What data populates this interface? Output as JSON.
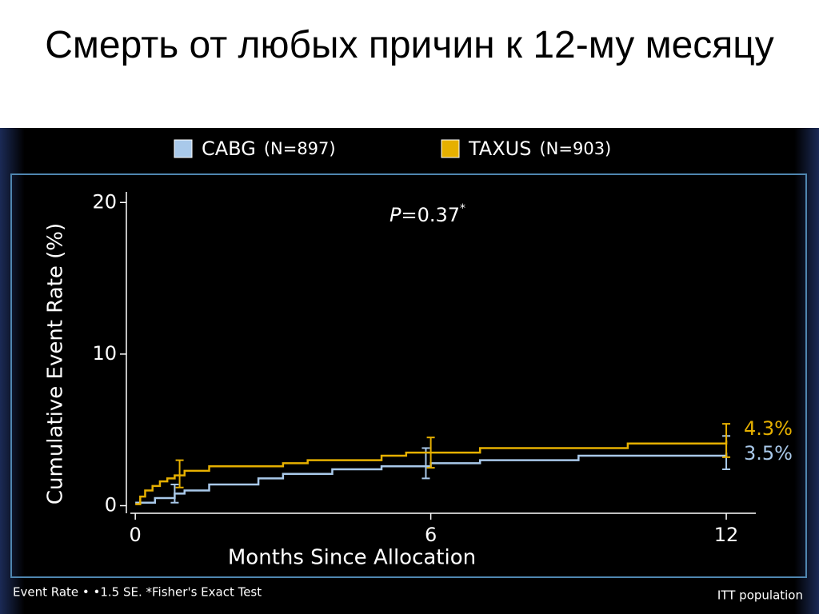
{
  "title": "Смерть от любых причин к 12-му месяцу",
  "chart_data": {
    "type": "step",
    "y_label": "Cumulative Event Rate (%)",
    "x_label": "Months Since Allocation",
    "annotation": {
      "p": "P",
      "text": "=0.37",
      "mark": "*"
    },
    "footnote": "Event Rate • •1.5 SE. *Fisher's Exact Test",
    "population": "ITT population",
    "xlim": [
      -0.1,
      12.6
    ],
    "xticks": [
      0,
      6,
      12
    ],
    "ylim": [
      -0.5,
      20.7
    ],
    "yticks": [
      0,
      10,
      20
    ],
    "series": [
      {
        "name": "CABG",
        "n_label": "(N=897)",
        "color": "#a9c9ea",
        "end_label": "3.5%",
        "x": [
          0,
          0.4,
          0.8,
          1.0,
          1.5,
          2.5,
          3.0,
          4.0,
          5.0,
          6.0,
          7.0,
          9.0,
          12.0
        ],
        "values": [
          0.2,
          0.5,
          0.8,
          1.0,
          1.4,
          1.8,
          2.1,
          2.4,
          2.6,
          2.8,
          3.0,
          3.3,
          3.5
        ],
        "error_bars": {
          "x": [
            0.8,
            5.9,
            12
          ],
          "values": [
            0.8,
            2.8,
            3.5
          ],
          "errors": [
            0.6,
            1.0,
            1.1
          ]
        }
      },
      {
        "name": "TAXUS",
        "n_label": "(N=903)",
        "color": "#e6b000",
        "end_label": "4.3%",
        "x": [
          0,
          0.1,
          0.2,
          0.35,
          0.5,
          0.65,
          0.8,
          1.0,
          1.5,
          3.0,
          3.5,
          5.0,
          5.5,
          7.0,
          10.0,
          12.0
        ],
        "values": [
          0.1,
          0.6,
          1.0,
          1.3,
          1.6,
          1.8,
          2.0,
          2.3,
          2.6,
          2.8,
          3.0,
          3.3,
          3.5,
          3.8,
          4.1,
          4.3
        ],
        "error_bars": {
          "x": [
            0.9,
            6,
            12
          ],
          "values": [
            2.1,
            3.5,
            4.3
          ],
          "errors": [
            0.9,
            1.0,
            1.1
          ]
        }
      }
    ]
  }
}
